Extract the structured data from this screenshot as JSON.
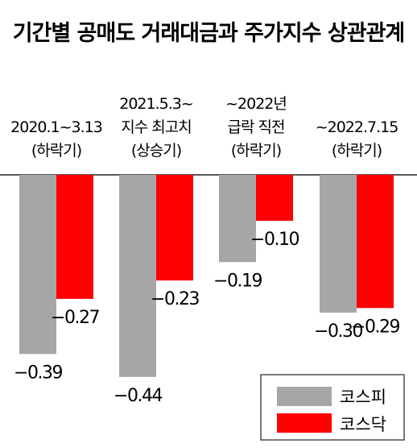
{
  "chart_data": {
    "type": "bar",
    "title": "기간별 공매도 거래대금과 주가지수 상관관계",
    "categories": [
      [
        "2020.1~3.13",
        "(하락기)"
      ],
      [
        "2021.5.3~",
        "지수 최고치",
        "(상승기)"
      ],
      [
        "~2022년",
        "급락 직전",
        "(하락기)"
      ],
      [
        "~2022.7.15",
        "(하락기)"
      ]
    ],
    "series": [
      {
        "name": "코스피",
        "values": [
          -0.39,
          -0.44,
          -0.19,
          -0.3
        ],
        "labels": [
          "−0.39",
          "−0.44",
          "−0.19",
          "−0.30"
        ]
      },
      {
        "name": "코스닥",
        "values": [
          -0.27,
          -0.23,
          -0.1,
          -0.29
        ],
        "labels": [
          "−0.27",
          "−0.23",
          "−0.10",
          "−0.29"
        ]
      }
    ],
    "ylim": [
      -0.5,
      0
    ],
    "legend_position": "bottom-right",
    "colors": {
      "코스피": "#a6a6a6",
      "코스닥": "#ff0000"
    }
  }
}
